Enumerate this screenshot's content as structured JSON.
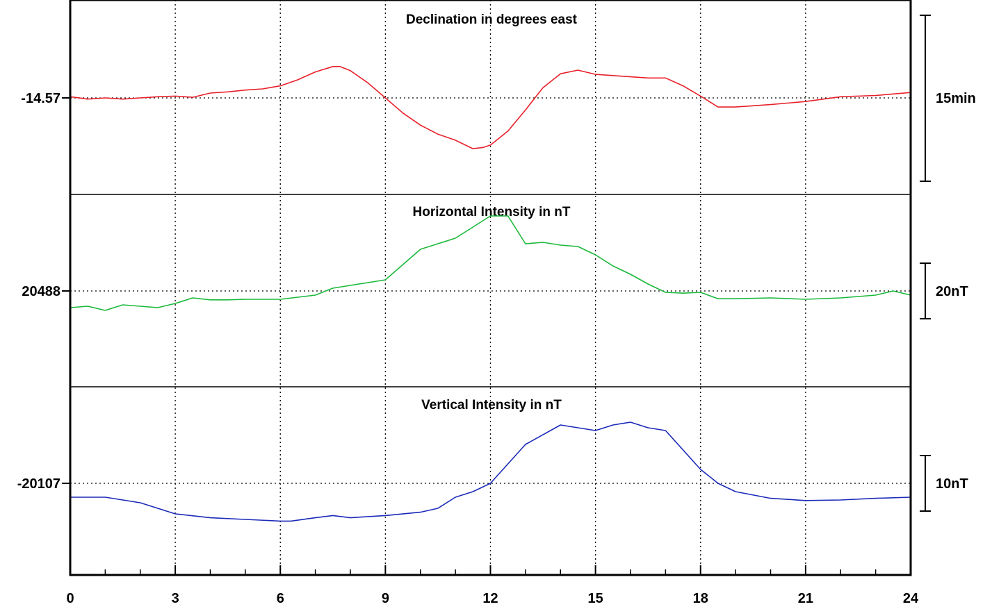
{
  "chart_data": {
    "type": "line",
    "x_range": [
      0,
      24
    ],
    "x_ticks": [
      "0",
      "3",
      "6",
      "9",
      "12",
      "15",
      "18",
      "21",
      "24"
    ],
    "grid": "dotted vertical lines every 3 hours",
    "panels": [
      {
        "title": "Declination in degrees east",
        "reference_label": "-14.57",
        "reference_value": -14.57,
        "scale_label": "15min",
        "color": "#e8202a",
        "y_unit": "arcmin offset from reference",
        "y_range": [
          -15,
          15
        ],
        "series": {
          "x": [
            0,
            0.5,
            1,
            1.5,
            2,
            2.5,
            3,
            3.5,
            4,
            4.5,
            5,
            5.5,
            6,
            6.5,
            7,
            7.5,
            7.7,
            8,
            8.5,
            9,
            9.5,
            10,
            10.5,
            11,
            11.5,
            11.8,
            12,
            12.5,
            13,
            13.5,
            14,
            14.5,
            15,
            15.5,
            16,
            16.5,
            17,
            17.5,
            18,
            18.5,
            19,
            19.5,
            20,
            21,
            22,
            23,
            24
          ],
          "y": [
            0.2,
            -0.2,
            0,
            -0.2,
            0,
            0.2,
            0.3,
            0.1,
            0.8,
            1.0,
            1.3,
            1.5,
            2.0,
            3.0,
            4.3,
            5.2,
            5.2,
            4.5,
            2.5,
            0,
            -2.5,
            -4.5,
            -6.0,
            -7.0,
            -8.4,
            -8.2,
            -7.8,
            -5.5,
            -2.0,
            1.7,
            4.0,
            4.6,
            3.9,
            3.7,
            3.5,
            3.3,
            3.3,
            2.0,
            0.3,
            -1.5,
            -1.5,
            -1.3,
            -1.1,
            -0.6,
            0.2,
            0.4,
            0.9
          ]
        }
      },
      {
        "title": "Horizontal Intensity in nT",
        "reference_label": "20488",
        "reference_value": 20488,
        "scale_label": "20nT",
        "color": "#1ab83a",
        "y_unit": "nT offset from reference",
        "y_range": [
          -35,
          35
        ],
        "series": {
          "x": [
            0,
            0.5,
            1,
            1.5,
            2,
            2.5,
            3,
            3.5,
            4,
            4.5,
            5,
            6,
            7,
            7.5,
            8,
            8.5,
            9,
            9.5,
            10,
            10.5,
            11,
            11.5,
            12,
            12.5,
            13,
            13.5,
            14,
            14.5,
            15,
            15.5,
            16,
            16.5,
            17,
            17.5,
            18,
            18.5,
            19,
            20,
            21,
            22,
            23,
            23.5,
            24
          ],
          "y": [
            -6,
            -5.5,
            -7,
            -5,
            -5.5,
            -6,
            -4.5,
            -2.5,
            -3.2,
            -3.2,
            -3.0,
            -3.0,
            -1.5,
            1,
            2,
            3,
            4,
            9.5,
            15,
            17,
            19,
            23,
            27,
            27,
            17,
            17.5,
            16.5,
            16,
            13,
            9,
            6,
            2.5,
            -0.5,
            -0.8,
            -0.5,
            -2.8,
            -2.8,
            -2.5,
            -3,
            -2.5,
            -1.5,
            0,
            -1.5
          ]
        }
      },
      {
        "title": "Vertical Intensity in nT",
        "reference_label": "-20107",
        "reference_value": -20107,
        "scale_label": "10nT",
        "color": "#1a2ab8",
        "y_unit": "nT offset from reference",
        "y_range": [
          -16,
          18
        ],
        "series": {
          "x": [
            0,
            1,
            2,
            3,
            4,
            5,
            6,
            6.3,
            7,
            7.5,
            8,
            9,
            10,
            10.5,
            11,
            11.5,
            12,
            13,
            14,
            14.5,
            15,
            15.5,
            16,
            16.5,
            17,
            18,
            18.5,
            19,
            20,
            21,
            22,
            23,
            24
          ],
          "y": [
            -2.5,
            -2.5,
            -3.5,
            -5.5,
            -6.2,
            -6.5,
            -6.8,
            -6.8,
            -6.2,
            -5.8,
            -6.2,
            -5.8,
            -5.2,
            -4.5,
            -2.5,
            -1.5,
            0,
            7,
            10.5,
            10,
            9.5,
            10.5,
            11,
            10,
            9.5,
            2.5,
            0,
            -1.5,
            -2.7,
            -3.1,
            -3.0,
            -2.7,
            -2.5
          ]
        }
      }
    ]
  }
}
